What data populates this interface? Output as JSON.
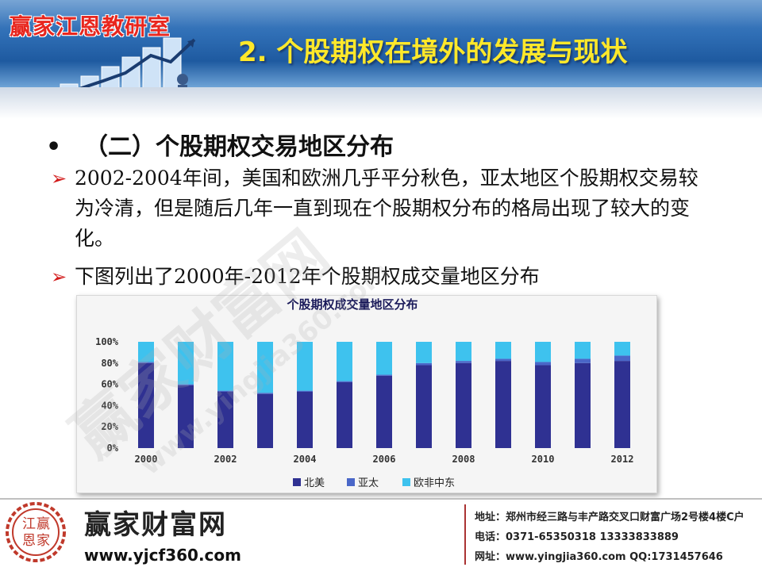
{
  "header": {
    "brand": "赢家江恩教研室",
    "title": "2. 个股期权在境外的发展与现状"
  },
  "content": {
    "bullet_dot": "•",
    "bullet": "（二）个股期权交易地区分布",
    "arrow": "➢",
    "para1": "2002-2004年间，美国和欧洲几乎平分秋色，亚太地区个股期权交易较为冷清，但是随后几年一直到现在个股期权分布的格局出现了较大的变化。",
    "para2": "下图列出了2000年-2012年个股期权成交量地区分布"
  },
  "chart_data": {
    "type": "bar",
    "stacked": true,
    "title": "个股期权成交量地区分布",
    "categories": [
      "2000",
      "2001",
      "2002",
      "2003",
      "2004",
      "2005",
      "2006",
      "2007",
      "2008",
      "2009",
      "2010",
      "2011",
      "2012"
    ],
    "x_tick_labels": [
      "2000",
      "2002",
      "2004",
      "2006",
      "2008",
      "2010",
      "2012"
    ],
    "y_tick_labels": [
      "0%",
      "20%",
      "40%",
      "60%",
      "80%",
      "100%"
    ],
    "ylim": [
      0,
      100
    ],
    "legend_position": "bottom",
    "series": [
      {
        "name": "北美",
        "color": "#2f3192",
        "values": [
          80,
          59,
          53,
          51,
          53,
          62,
          68,
          78,
          80,
          82,
          78,
          80,
          82
        ]
      },
      {
        "name": "亚太",
        "color": "#4a67c8",
        "values": [
          1,
          1,
          1,
          1,
          1,
          1,
          1,
          2,
          2,
          2,
          3,
          4,
          5
        ]
      },
      {
        "name": "欧非中东",
        "color": "#3ec2ee",
        "values": [
          19,
          40,
          46,
          48,
          46,
          37,
          31,
          20,
          18,
          16,
          19,
          16,
          13
        ]
      }
    ]
  },
  "watermark": {
    "text1": "赢家财富网",
    "text2": "www.yingjia360.com"
  },
  "footer": {
    "seal_chars": [
      "江",
      "赢",
      "恩",
      "家"
    ],
    "site_name": "赢家财富网",
    "site_url": "www.yjcf360.com",
    "address": "地址：郑州市经三路与丰产路交叉口财富广场2号楼4楼C户",
    "phone": "电话：0371-65350318  13333833889",
    "web": "网址：www.yingjia360.com  QQ:1731457646"
  },
  "colors": {
    "title_yellow": "#ffe82a",
    "brand_red": "#e8261e",
    "arrow_red": "#d21a1a"
  }
}
